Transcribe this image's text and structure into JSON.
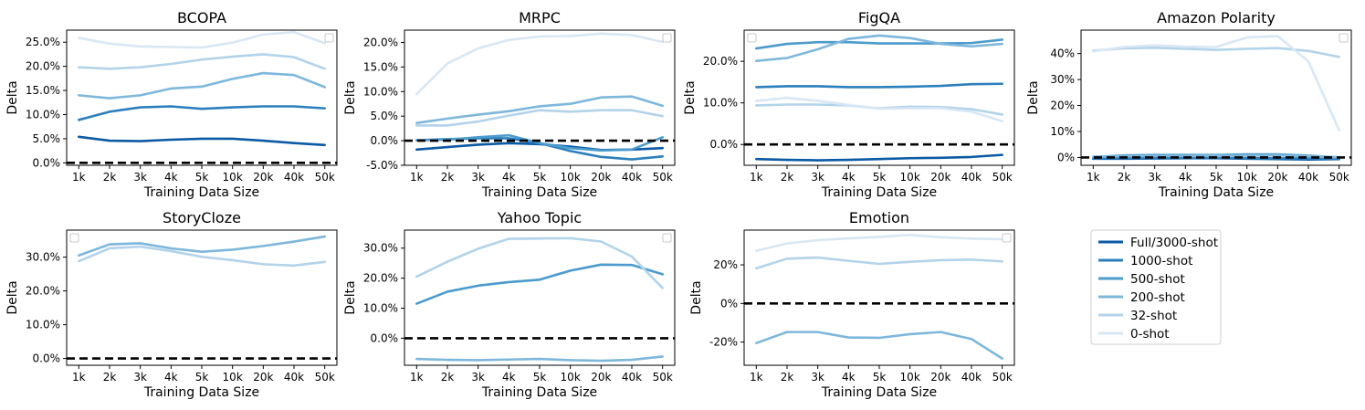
{
  "colors": {
    "Full/3000-shot": "#0a5aa4",
    "1000-shot": "#2c7fbd",
    "500-shot": "#4b9bcd",
    "200-shot": "#7eb7dc",
    "32-shot": "#b2d3ea",
    "0-shot": "#d9e7f5",
    "baseline": "#000000"
  },
  "legend": {
    "placement": "separate panel (bottom-right)",
    "entries": [
      "Full/3000-shot",
      "1000-shot",
      "500-shot",
      "200-shot",
      "32-shot",
      "0-shot"
    ]
  },
  "chart_data": [
    {
      "type": "line",
      "title": "BCOPA",
      "xlabel": "Training Data Size",
      "ylabel": "Delta",
      "x": [
        "1k",
        "2k",
        "3k",
        "4k",
        "5k",
        "10k",
        "20k",
        "40k",
        "50k"
      ],
      "ylim": [
        -0.005,
        0.275
      ],
      "yticks": [
        0,
        0.05,
        0.1,
        0.15,
        0.2,
        0.25
      ],
      "yticklabels": [
        "0.0%",
        "5.0%",
        "10.0%",
        "15.0%",
        "20.0%",
        "25.0%"
      ],
      "grid": false,
      "series": [
        {
          "name": "Full/3000-shot",
          "values": [
            0.054,
            0.046,
            0.045,
            0.048,
            0.05,
            0.05,
            0.046,
            0.041,
            0.037
          ]
        },
        {
          "name": "1000-shot",
          "values": [
            0.089,
            0.106,
            0.115,
            0.117,
            0.112,
            0.115,
            0.117,
            0.117,
            0.113
          ]
        },
        {
          "name": "200-shot",
          "values": [
            0.14,
            0.134,
            0.14,
            0.154,
            0.158,
            0.174,
            0.186,
            0.182,
            0.157
          ]
        },
        {
          "name": "32-shot",
          "values": [
            0.198,
            0.195,
            0.198,
            0.205,
            0.214,
            0.22,
            0.225,
            0.219,
            0.195
          ]
        },
        {
          "name": "0-shot",
          "values": [
            0.259,
            0.247,
            0.241,
            0.24,
            0.239,
            0.249,
            0.266,
            0.271,
            0.248
          ]
        }
      ],
      "baseline": 0
    },
    {
      "type": "line",
      "title": "MRPC",
      "xlabel": "Training Data Size",
      "ylabel": "Delta",
      "x": [
        "1k",
        "2k",
        "3k",
        "4k",
        "5k",
        "10k",
        "20k",
        "40k",
        "50k"
      ],
      "ylim": [
        -0.05,
        0.225
      ],
      "yticks": [
        -0.05,
        0,
        0.05,
        0.1,
        0.15,
        0.2
      ],
      "yticklabels": [
        "-5.0%",
        "0.0%",
        "5.0%",
        "10.0%",
        "15.0%",
        "20.0%"
      ],
      "grid": false,
      "series": [
        {
          "name": "Full/3000-shot",
          "values": [
            -0.018,
            -0.013,
            -0.008,
            -0.005,
            -0.007,
            -0.012,
            -0.019,
            -0.018,
            -0.015
          ]
        },
        {
          "name": "1000-shot",
          "values": [
            0.001,
            0.003,
            0.005,
            0.005,
            -0.005,
            -0.021,
            -0.033,
            -0.038,
            -0.032
          ]
        },
        {
          "name": "500-shot",
          "values": [
            0.001,
            0.002,
            0.007,
            0.011,
            -0.005,
            -0.015,
            -0.02,
            -0.018,
            0.007
          ]
        },
        {
          "name": "200-shot",
          "values": [
            0.036,
            0.045,
            0.053,
            0.06,
            0.07,
            0.075,
            0.088,
            0.09,
            0.071
          ]
        },
        {
          "name": "32-shot",
          "values": [
            0.031,
            0.031,
            0.039,
            0.051,
            0.062,
            0.059,
            0.062,
            0.062,
            0.05
          ]
        },
        {
          "name": "0-shot",
          "values": [
            0.095,
            0.157,
            0.188,
            0.205,
            0.212,
            0.213,
            0.218,
            0.215,
            0.201
          ]
        }
      ],
      "baseline": 0
    },
    {
      "type": "line",
      "title": "FigQA",
      "xlabel": "Training Data Size",
      "ylabel": "Delta",
      "x": [
        "1k",
        "2k",
        "3k",
        "4k",
        "5k",
        "10k",
        "20k",
        "40k",
        "50k"
      ],
      "ylim": [
        -0.05,
        0.275
      ],
      "yticks": [
        0,
        0.1,
        0.2
      ],
      "yticklabels": [
        "0.0%",
        "10.0%",
        "20.0%"
      ],
      "grid": false,
      "series": [
        {
          "name": "Full/3000-shot",
          "values": [
            -0.035,
            -0.037,
            -0.038,
            -0.037,
            -0.035,
            -0.033,
            -0.032,
            -0.03,
            -0.025
          ]
        },
        {
          "name": "1000-shot",
          "values": [
            0.138,
            0.14,
            0.14,
            0.138,
            0.138,
            0.139,
            0.141,
            0.145,
            0.146
          ]
        },
        {
          "name": "500-shot",
          "values": [
            0.231,
            0.242,
            0.246,
            0.246,
            0.243,
            0.243,
            0.243,
            0.244,
            0.252
          ]
        },
        {
          "name": "200-shot",
          "values": [
            0.201,
            0.208,
            0.229,
            0.254,
            0.262,
            0.256,
            0.242,
            0.236,
            0.242
          ]
        },
        {
          "name": "32-shot",
          "values": [
            0.094,
            0.096,
            0.096,
            0.094,
            0.087,
            0.091,
            0.09,
            0.085,
            0.072
          ]
        },
        {
          "name": "0-shot",
          "values": [
            0.105,
            0.112,
            0.105,
            0.095,
            0.086,
            0.087,
            0.087,
            0.079,
            0.056
          ]
        }
      ],
      "baseline": 0
    },
    {
      "type": "line",
      "title": "Amazon Polarity",
      "xlabel": "Training Data Size",
      "ylabel": "Delta",
      "x": [
        "1k",
        "2k",
        "3k",
        "4k",
        "5k",
        "10k",
        "20k",
        "40k",
        "50k"
      ],
      "ylim": [
        -0.03,
        0.49
      ],
      "yticks": [
        0,
        0.1,
        0.2,
        0.3,
        0.4
      ],
      "yticklabels": [
        "0%",
        "10%",
        "20%",
        "30%",
        "40%"
      ],
      "grid": false,
      "series": [
        {
          "name": "Full/3000-shot",
          "values": [
            -0.005,
            -0.005,
            -0.004,
            -0.003,
            -0.003,
            -0.005,
            -0.006,
            -0.008,
            -0.006
          ]
        },
        {
          "name": "1000-shot",
          "values": [
            -0.003,
            -0.002,
            -0.002,
            -0.002,
            -0.002,
            -0.003,
            -0.003,
            -0.004,
            -0.004
          ]
        },
        {
          "name": "500-shot",
          "values": [
            0.002,
            0.008,
            0.01,
            0.01,
            0.01,
            0.012,
            0.012,
            0.007,
            0.0
          ]
        },
        {
          "name": "200-shot",
          "values": [
            0.003,
            0.005,
            0.006,
            0.006,
            0.007,
            0.007,
            0.008,
            0.005,
            0.001
          ]
        },
        {
          "name": "32-shot",
          "values": [
            0.411,
            0.42,
            0.422,
            0.418,
            0.414,
            0.418,
            0.421,
            0.41,
            0.387
          ]
        },
        {
          "name": "0-shot",
          "values": [
            0.408,
            0.425,
            0.432,
            0.426,
            0.425,
            0.462,
            0.467,
            0.37,
            0.105
          ]
        }
      ],
      "baseline": 0
    },
    {
      "type": "line",
      "title": "StoryCloze",
      "xlabel": "Training Data Size",
      "ylabel": "Delta",
      "x": [
        "1k",
        "2k",
        "3k",
        "4k",
        "5k",
        "10k",
        "20k",
        "40k",
        "50k"
      ],
      "ylim": [
        -0.02,
        0.38
      ],
      "yticks": [
        0,
        0.1,
        0.2,
        0.3
      ],
      "yticklabels": [
        "0.0%",
        "10.0%",
        "20.0%",
        "30.0%"
      ],
      "grid": false,
      "series": [
        {
          "name": "200-shot",
          "values": [
            0.305,
            0.338,
            0.341,
            0.326,
            0.316,
            0.322,
            0.333,
            0.346,
            0.361
          ]
        },
        {
          "name": "32-shot",
          "values": [
            0.288,
            0.326,
            0.331,
            0.318,
            0.301,
            0.291,
            0.279,
            0.275,
            0.286
          ]
        }
      ],
      "baseline": 0
    },
    {
      "type": "line",
      "title": "Yahoo Topic",
      "xlabel": "Training Data Size",
      "ylabel": "Delta",
      "x": [
        "1k",
        "2k",
        "3k",
        "4k",
        "5k",
        "10k",
        "20k",
        "40k",
        "50k"
      ],
      "ylim": [
        -0.09,
        0.36
      ],
      "yticks": [
        0,
        0.1,
        0.2,
        0.3
      ],
      "yticklabels": [
        "0.0%",
        "10.0%",
        "20.0%",
        "30.0%"
      ],
      "grid": false,
      "series": [
        {
          "name": "200-shot",
          "values": [
            -0.069,
            -0.072,
            -0.073,
            -0.071,
            -0.069,
            -0.073,
            -0.075,
            -0.072,
            -0.061
          ]
        },
        {
          "name": "500-shot",
          "values": [
            0.115,
            0.155,
            0.175,
            0.187,
            0.195,
            0.225,
            0.245,
            0.244,
            0.213
          ]
        },
        {
          "name": "32-shot",
          "values": [
            0.205,
            0.255,
            0.298,
            0.331,
            0.332,
            0.333,
            0.322,
            0.272,
            0.167
          ]
        }
      ],
      "baseline": 0
    },
    {
      "type": "line",
      "title": "Emotion",
      "xlabel": "Training Data Size",
      "ylabel": "Delta",
      "x": [
        "1k",
        "2k",
        "3k",
        "4k",
        "5k",
        "10k",
        "20k",
        "40k",
        "50k"
      ],
      "ylim": [
        -0.32,
        0.38
      ],
      "yticks": [
        -0.2,
        0,
        0.2
      ],
      "yticklabels": [
        "-20%",
        "0%",
        "20%"
      ],
      "grid": false,
      "series": [
        {
          "name": "200-shot",
          "values": [
            -0.205,
            -0.148,
            -0.148,
            -0.176,
            -0.178,
            -0.159,
            -0.148,
            -0.184,
            -0.285
          ]
        },
        {
          "name": "32-shot",
          "values": [
            0.182,
            0.232,
            0.238,
            0.221,
            0.205,
            0.216,
            0.224,
            0.227,
            0.218
          ]
        },
        {
          "name": "0-shot",
          "values": [
            0.273,
            0.311,
            0.328,
            0.337,
            0.345,
            0.355,
            0.343,
            0.336,
            0.333
          ]
        }
      ],
      "baseline": 0
    }
  ]
}
